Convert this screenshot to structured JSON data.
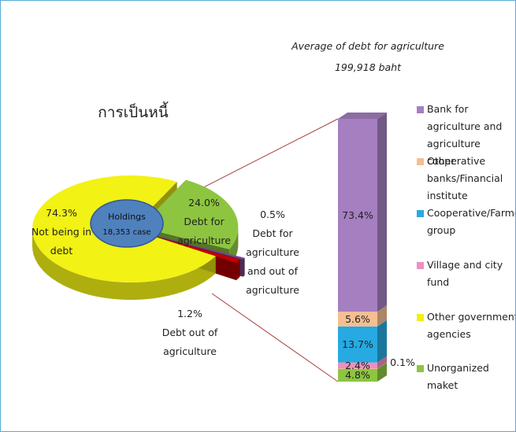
{
  "chart_data": [
    {
      "type": "pie",
      "title": "การเป็นหนี้",
      "center_label": [
        "Holdings",
        "18,353 case"
      ],
      "categories": [
        "Debt for agriculture",
        "Debt for agriculture and out of agriculture",
        "Debt out of agriculture",
        "Not being in debt"
      ],
      "values": [
        24.0,
        0.5,
        1.2,
        74.3
      ],
      "value_labels": [
        "24.0%",
        "0.5%",
        "1.2%",
        "74.3%"
      ],
      "colors": [
        "#8dc540",
        "#7b4a8e",
        "#c00000",
        "#f2f215"
      ]
    },
    {
      "type": "stacked_bar",
      "title": "Average of debt for agriculture",
      "subtitle": "199,918 baht",
      "series": [
        {
          "name": "Bank for agriculture and agriculture cooperative",
          "color": "#a57fc0",
          "values": [
            73.4
          ],
          "value_labels": [
            "73.4%"
          ]
        },
        {
          "name": "Other banks/Financial institute",
          "color": "#f5bf91",
          "values": [
            5.6
          ],
          "value_labels": [
            "5.6%"
          ]
        },
        {
          "name": "Cooperative/Farmer's group",
          "color": "#27a9e1",
          "values": [
            13.7
          ],
          "value_labels": [
            "13.7%"
          ]
        },
        {
          "name": "Village and city fund",
          "color": "#ee8fbf",
          "values": [
            2.4
          ],
          "value_labels": [
            "2.4%"
          ]
        },
        {
          "name": "Other government agencies",
          "color": "#f6ee16",
          "values": [
            0.1
          ],
          "value_labels": [
            "0.1%"
          ]
        },
        {
          "name": "Unorganized maket",
          "color": "#8dc540",
          "values": [
            4.8
          ],
          "value_labels": [
            "4.8%"
          ]
        }
      ]
    }
  ]
}
